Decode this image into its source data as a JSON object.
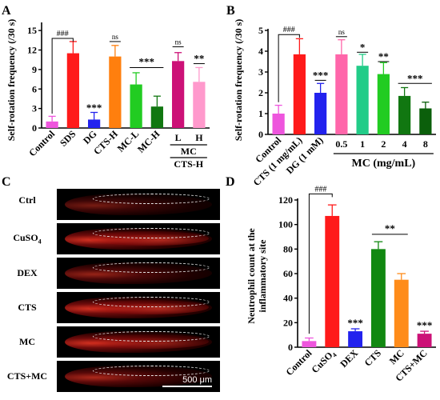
{
  "panels": {
    "A": "A",
    "B": "B",
    "C": "C",
    "D": "D"
  },
  "colors": {
    "A": [
      "#ee55dd",
      "#ff1a1a",
      "#2222ee",
      "#ff7f0e",
      "#22cc22",
      "#117711",
      "#cc1177",
      "#ff99cc"
    ],
    "B": [
      "#ee55dd",
      "#ff1a1a",
      "#2222ee",
      "#ff66aa",
      "#22cc88",
      "#22cc22",
      "#117711",
      "#0b5f0b"
    ],
    "D": [
      "#ee55dd",
      "#ff1a1a",
      "#2222ee",
      "#118811",
      "#ff8c1a",
      "#cc1177"
    ]
  },
  "chart_data": [
    {
      "panel": "A",
      "type": "bar",
      "ylabel": "Self-rotation frequency (/30 s)",
      "ylim": [
        0,
        16
      ],
      "yticks": [
        "0",
        "3",
        "6",
        "9",
        "12",
        "15"
      ],
      "categories": [
        "Control",
        "SDS",
        "DG",
        "CTS-H",
        "MC-L",
        "MC-H",
        "L",
        "H"
      ],
      "values": [
        1.0,
        11.5,
        1.3,
        11.0,
        6.7,
        3.3,
        10.3,
        7.1
      ],
      "errors": [
        0.8,
        1.8,
        1.1,
        1.7,
        1.8,
        1.6,
        1.3,
        2.2
      ],
      "annotations": {
        "hash": "###",
        "star3": "***",
        "star2": "**",
        "ns": "ns"
      },
      "group_label_top": "MC",
      "group_label_bottom": "CTS-H"
    },
    {
      "panel": "B",
      "type": "bar",
      "ylabel": "Self-rotation frequency (/30 s)",
      "ylim": [
        0,
        5
      ],
      "yticks": [
        "0",
        "1",
        "2",
        "3",
        "4",
        "5"
      ],
      "categories": [
        "Control",
        "CTS (1 mg/mL)",
        "DG (1 mM)",
        "0.5",
        "1",
        "2",
        "4",
        "8"
      ],
      "values": [
        1.0,
        3.85,
        2.0,
        3.85,
        3.3,
        2.9,
        1.85,
        1.25
      ],
      "errors": [
        0.4,
        0.75,
        0.45,
        0.7,
        0.55,
        0.55,
        0.4,
        0.3
      ],
      "annotations": {
        "hash": "###",
        "star3": "***",
        "star2": "**",
        "star1": "*",
        "ns": "ns"
      },
      "group_label": "MC (mg/mL)"
    },
    {
      "panel": "D",
      "type": "bar",
      "ylabel_line1": "Neutrophil count at the",
      "ylabel_line2": "inflammatory site",
      "ylim": [
        0,
        120
      ],
      "yticks": [
        "0",
        "20",
        "40",
        "60",
        "80",
        "100",
        "120"
      ],
      "categories": [
        "Control",
        "CuSO",
        "DEX",
        "CTS",
        "MC",
        "CTS+MC"
      ],
      "subscript": "4",
      "values": [
        5,
        107,
        13,
        80,
        55,
        11
      ],
      "errors": [
        2.5,
        9,
        2,
        6,
        5,
        2
      ],
      "annotations": {
        "hash": "###",
        "star3": "***",
        "star2": "**"
      }
    }
  ],
  "micrographs": {
    "labels": [
      "Ctrl",
      "CuSO",
      "DEX",
      "CTS",
      "MC",
      "CTS+MC"
    ],
    "cuso_sub": "4",
    "scale_bar": "500 μm"
  }
}
